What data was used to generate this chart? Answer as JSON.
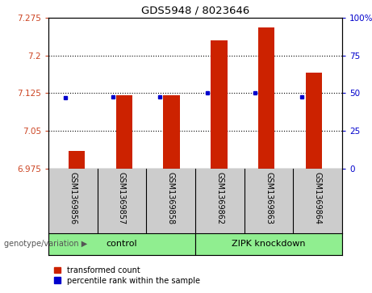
{
  "title": "GDS5948 / 8023646",
  "samples": [
    "GSM1369856",
    "GSM1369857",
    "GSM1369858",
    "GSM1369862",
    "GSM1369863",
    "GSM1369864"
  ],
  "red_values": [
    7.01,
    7.12,
    7.12,
    7.23,
    7.255,
    7.165
  ],
  "blue_values": [
    7.115,
    7.118,
    7.118,
    7.125,
    7.125,
    7.118
  ],
  "ylim": [
    6.975,
    7.275
  ],
  "yticks": [
    6.975,
    7.05,
    7.125,
    7.2,
    7.275
  ],
  "right_ylim": [
    0,
    100
  ],
  "right_yticks": [
    0,
    25,
    50,
    75,
    100
  ],
  "bar_color": "#cc2200",
  "dot_color": "#0000cc",
  "bar_width": 0.35,
  "control_color": "#90ee90",
  "zipk_color": "#90ee90",
  "control_label": "control",
  "zipk_label": "ZIPK knockdown",
  "genotype_label": "genotype/variation",
  "legend1": "transformed count",
  "legend2": "percentile rank within the sample",
  "bg_color": "#cccccc",
  "plot_bg": "#ffffff"
}
